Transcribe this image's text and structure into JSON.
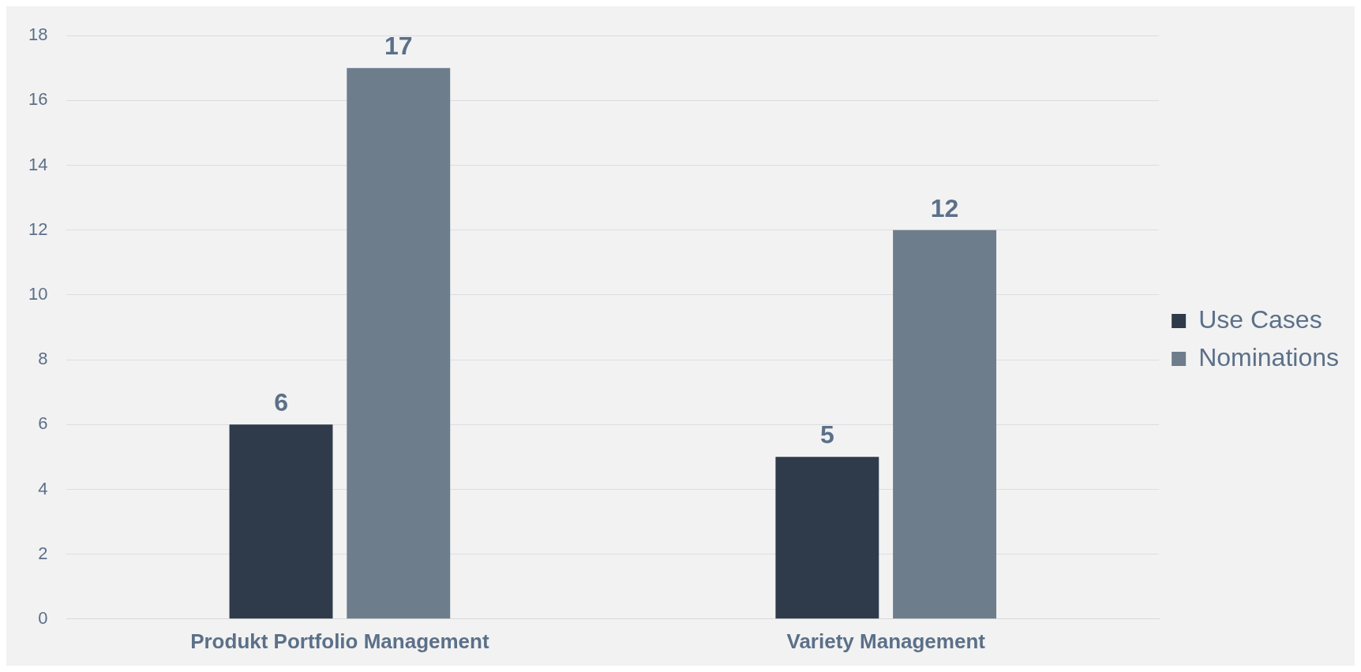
{
  "chart_data": {
    "type": "bar",
    "categories": [
      "Produkt Portfolio Management",
      "Variety Management"
    ],
    "series": [
      {
        "name": "Use Cases",
        "color": "#2f3b4a",
        "values": [
          6,
          5
        ]
      },
      {
        "name": "Nominations",
        "color": "#6d7d8c",
        "values": [
          17,
          12
        ]
      }
    ],
    "ylim": [
      0,
      18
    ],
    "yticks": [
      0,
      2,
      4,
      6,
      8,
      10,
      12,
      14,
      16,
      18
    ],
    "grid": "y",
    "legend": "right",
    "data_labels": true
  }
}
